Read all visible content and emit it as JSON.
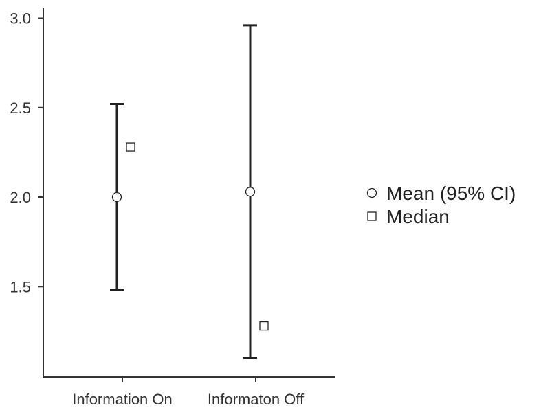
{
  "chart_data": {
    "type": "scatter",
    "categories": [
      "Information On",
      "Informaton Off"
    ],
    "series": [
      {
        "name": "Mean (95% CI)",
        "marker": "circle",
        "values": [
          2.0,
          2.03
        ],
        "ci_lower": [
          1.48,
          1.1
        ],
        "ci_upper": [
          2.52,
          2.96
        ]
      },
      {
        "name": "Median",
        "marker": "square",
        "values": [
          2.28,
          1.28
        ]
      }
    ],
    "yticks": [
      "1.5",
      "2.0",
      "2.5",
      "3.0"
    ],
    "ylim": [
      1.0,
      3.05
    ],
    "xlabel": "",
    "ylabel": "",
    "grid": false,
    "legend_position": "right",
    "colors": {
      "line": "#222222",
      "marker_fill": "#ffffff",
      "text": "#333333"
    }
  }
}
